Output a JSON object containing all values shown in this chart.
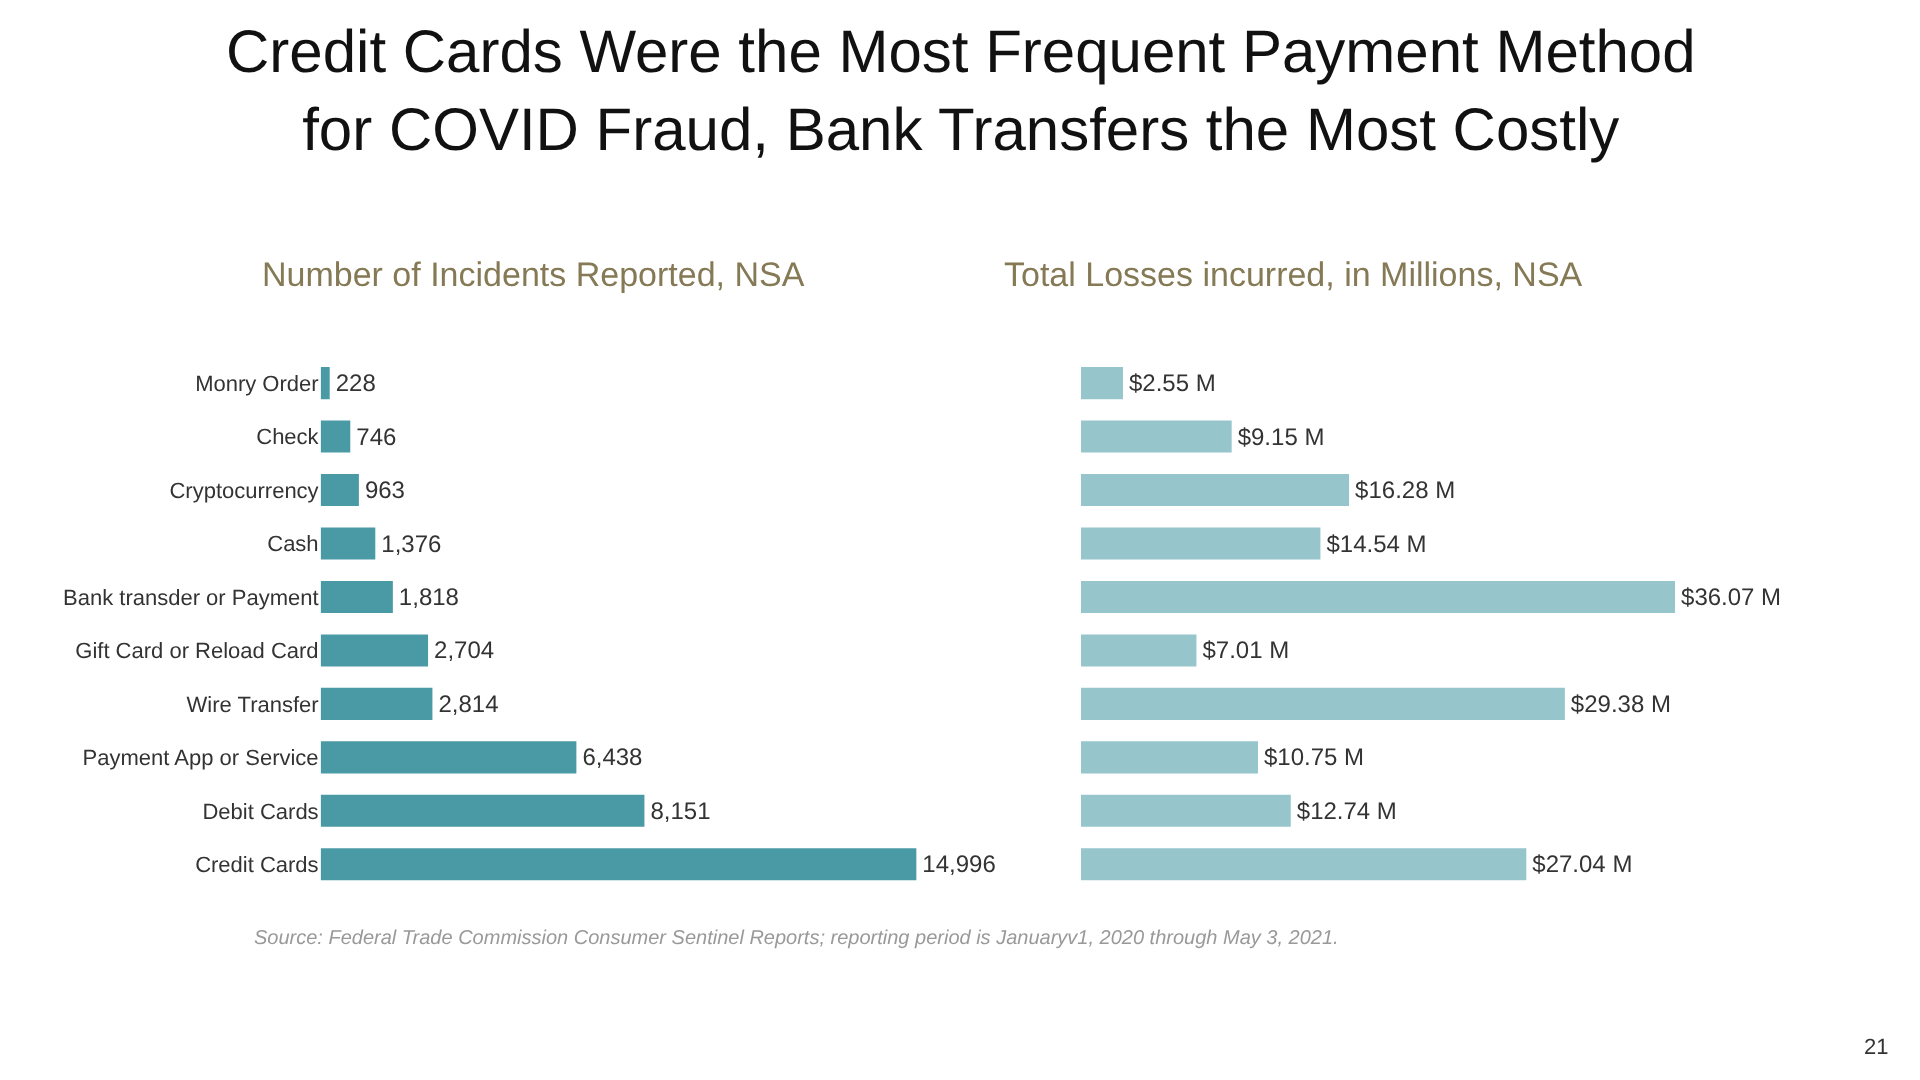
{
  "chart_data": [
    {
      "type": "bar",
      "orientation": "horizontal",
      "title": "Credit Cards Were the Most Frequent Payment Method for COVID Fraud, Bank Transfers the Most Costly",
      "subtitle": "Number of Incidents Reported, NSA",
      "categories": [
        "Monry Order",
        "Check",
        "Cryptocurrency",
        "Cash",
        "Bank transder or Payment",
        "Gift Card or Reload Card",
        "Wire Transfer",
        "Payment App or Service",
        "Debit Cards",
        "Credit Cards"
      ],
      "values": [
        228,
        746,
        963,
        1376,
        1818,
        2704,
        2814,
        6438,
        8151,
        14996
      ],
      "value_labels": [
        "228",
        "746",
        "963",
        "1,376",
        "1,818",
        "2,704",
        "2,814",
        "6,438",
        "8,151",
        "14,996"
      ],
      "color": "#4a9aa6",
      "tick_labels": "y",
      "annotations": [
        "Source: Federal Trade Commission Consumer Sentinel Reports; reporting period is Januaryv1, 2020 through May 3, 2021.",
        "21"
      ]
    },
    {
      "type": "bar",
      "orientation": "horizontal",
      "title": "Total Losses incurred, in Millions, NSA",
      "categories": [
        null,
        null,
        null,
        null,
        null,
        null,
        null,
        null,
        null,
        null
      ],
      "values": [
        2.55,
        9.15,
        16.28,
        14.54,
        36.07,
        7.01,
        29.38,
        10.75,
        12.74,
        27.04
      ],
      "value_labels": [
        "$2.55 M",
        "$9.15 M",
        "$16.28 M",
        "$14.54 M",
        "$36.07 M",
        "$7.01 M",
        "$29.38 M",
        "$10.75 M",
        "$12.74 M",
        "$27.04 M"
      ],
      "color": "#96c5cc",
      "tick_labels": false
    }
  ]
}
